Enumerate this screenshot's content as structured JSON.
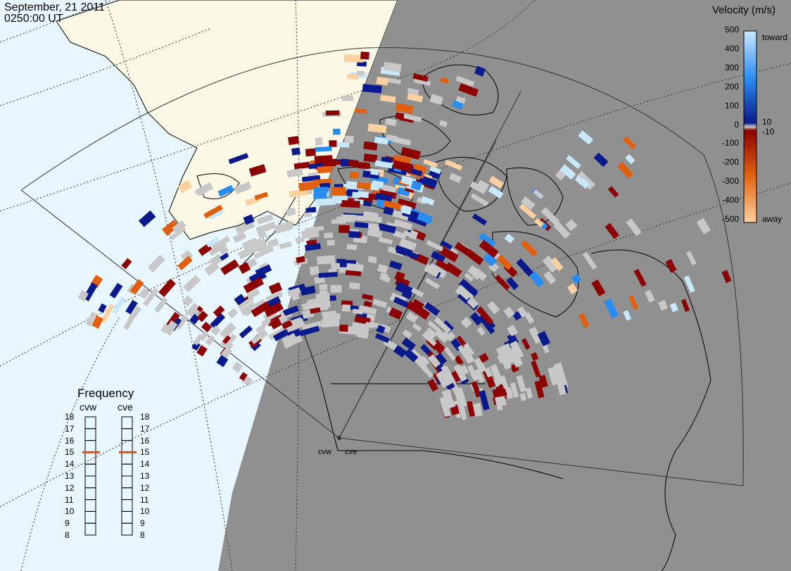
{
  "header": {
    "date": "September, 21 2011",
    "time": "0250:00 UT"
  },
  "legend": {
    "title": "Velocity (m/s)",
    "ticks": [
      "500",
      "400",
      "300",
      "200",
      "100",
      "0",
      "-100",
      "-200",
      "-300",
      "-400",
      "-500"
    ],
    "toward_label": "toward",
    "away_label": "away",
    "small_pos": "10",
    "small_neg": "-10",
    "colors": {
      "toward_light": "#c8e8ff",
      "toward_mid": "#2a8cf0",
      "toward_dark": "#0a1a8c",
      "away_dark": "#8c0000",
      "away_mid": "#e06010",
      "away_light": "#ffd0a0",
      "ground_scatter": "#c8c8c8"
    }
  },
  "frequency_panel": {
    "title": "Frequency",
    "radars": [
      {
        "name": "cvw",
        "frequency": 15
      },
      {
        "name": "cve",
        "frequency": 15
      }
    ],
    "scale": [
      "18",
      "17",
      "16",
      "15",
      "14",
      "13",
      "12",
      "11",
      "10",
      "9",
      "8"
    ],
    "indicator_color": "#e05010"
  },
  "map": {
    "night_color": "#909090",
    "ocean_color": "#e8f6ff",
    "land_day_color": "#fbf8e6",
    "radar_sites": [
      "cvw",
      "cve"
    ]
  }
}
